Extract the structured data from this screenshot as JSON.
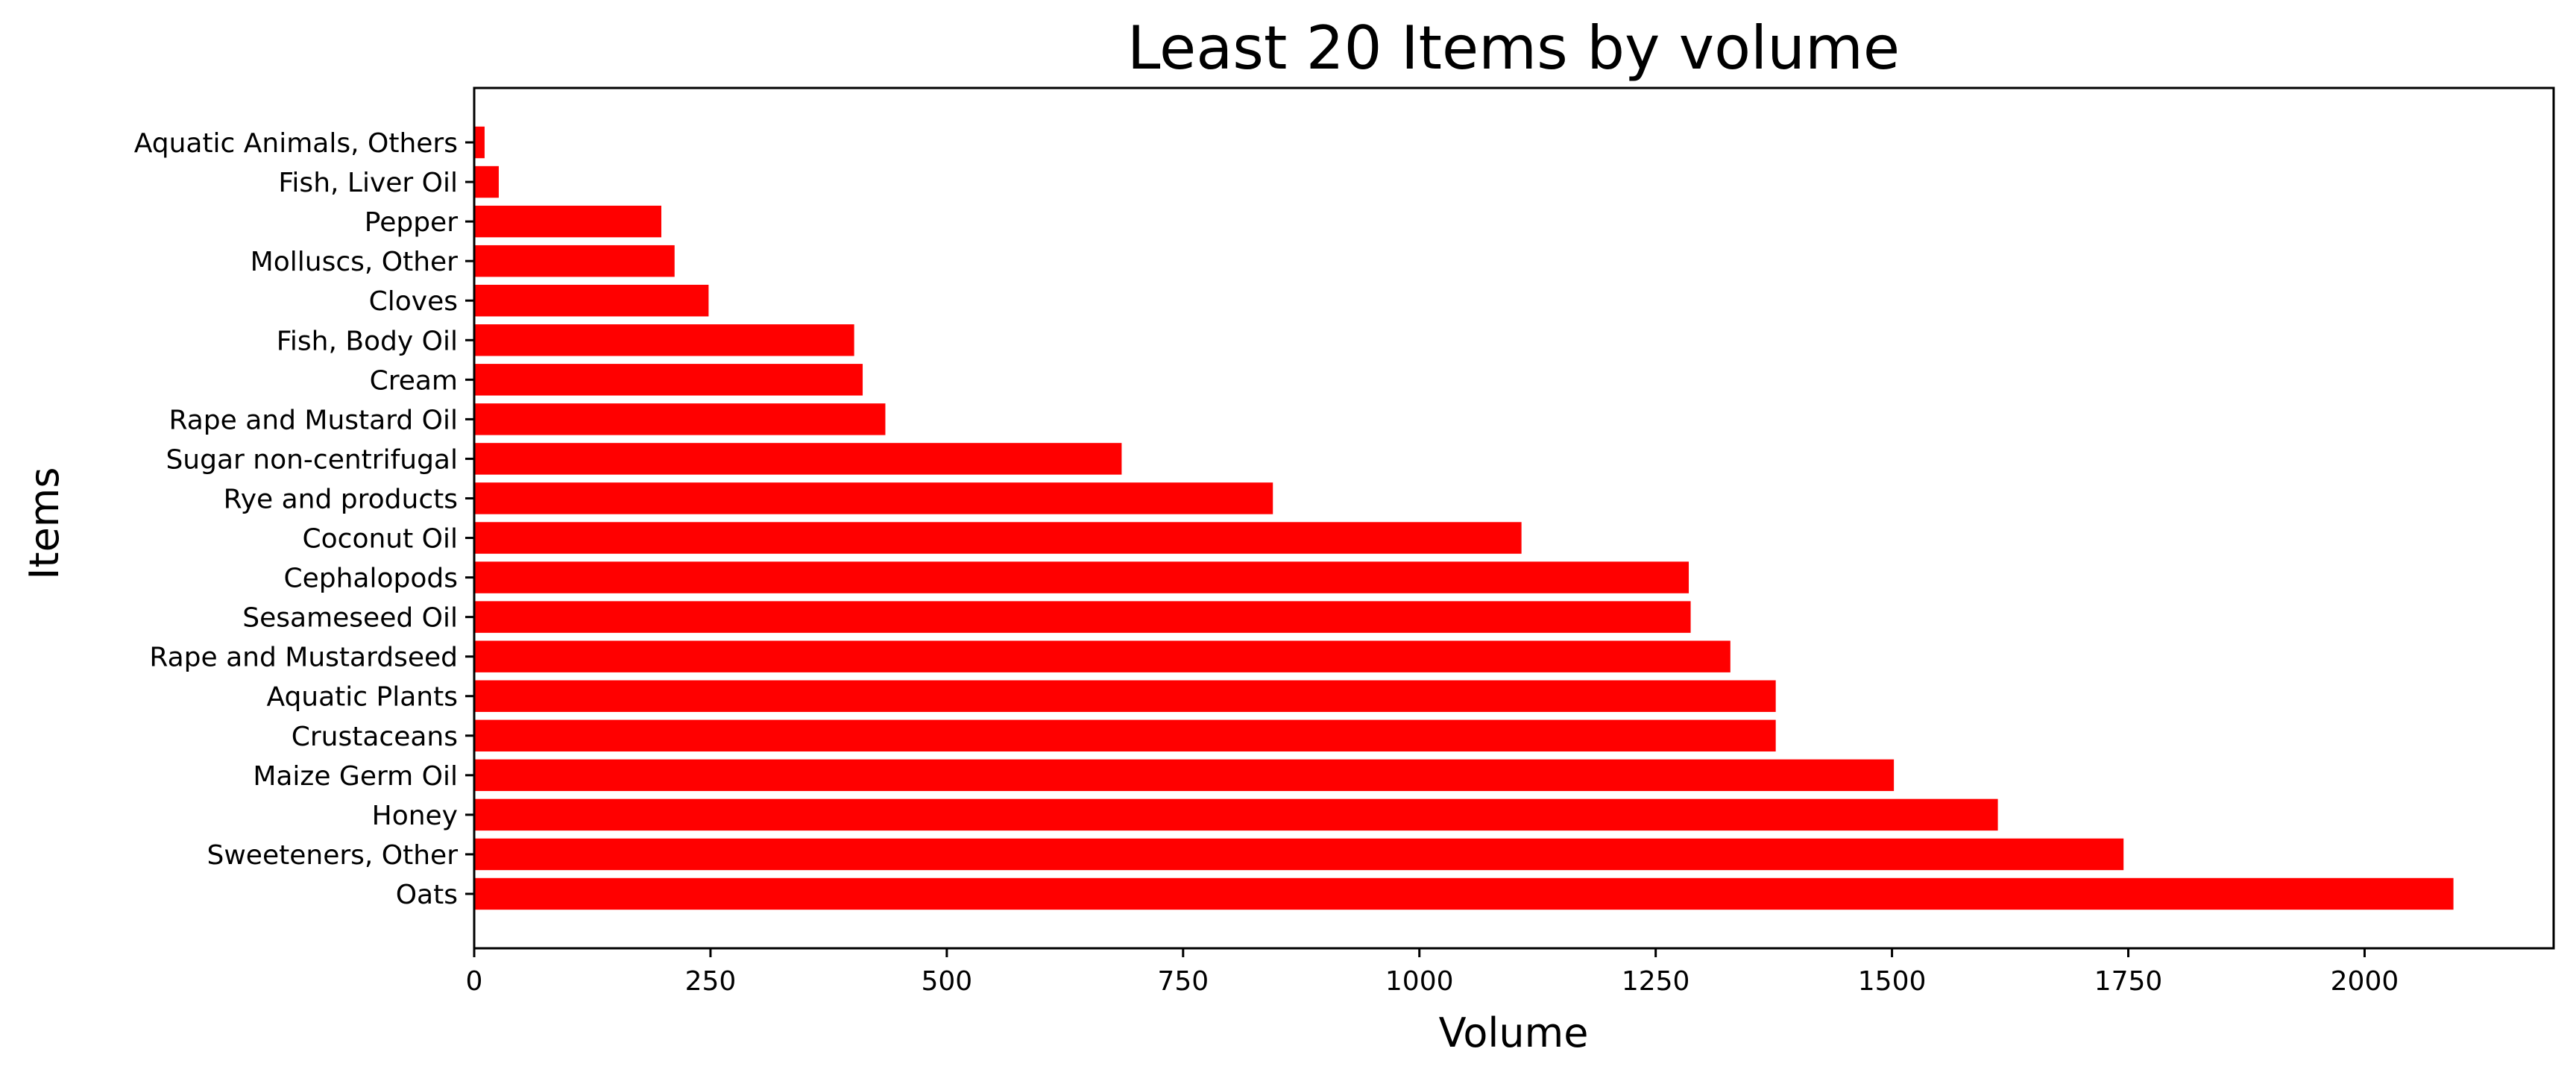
{
  "chart_data": {
    "type": "bar",
    "orientation": "horizontal",
    "title": "Least 20 Items by volume",
    "xlabel": "Volume",
    "ylabel": "Items",
    "xlim": [
      0,
      2200
    ],
    "xticks": [
      0,
      250,
      500,
      750,
      1000,
      1250,
      1500,
      1750,
      2000
    ],
    "xtick_labels": [
      "0",
      "250",
      "500",
      "750",
      "1000",
      "1250",
      "1500",
      "1750",
      "2000"
    ],
    "grid": false,
    "legend": "none",
    "bar_color": "#ff0000",
    "categories": [
      "Oats",
      "Sweeteners, Other",
      "Honey",
      "Maize Germ Oil",
      "Crustaceans",
      "Aquatic Plants",
      "Rape and Mustardseed",
      "Sesameseed Oil",
      "Cephalopods",
      "Coconut Oil",
      "Rye and products",
      "Sugar non-centrifugal",
      "Rape and Mustard Oil",
      "Cream",
      "Fish, Body Oil",
      "Cloves",
      "Molluscs, Other",
      "Pepper",
      "Fish, Liver Oil",
      "Aquatic Animals, Others"
    ],
    "values": [
      2094,
      1745,
      1612,
      1502,
      1377,
      1377,
      1329,
      1287,
      1285,
      1108,
      845,
      685,
      435,
      411,
      402,
      248,
      212,
      198,
      26,
      11
    ]
  }
}
